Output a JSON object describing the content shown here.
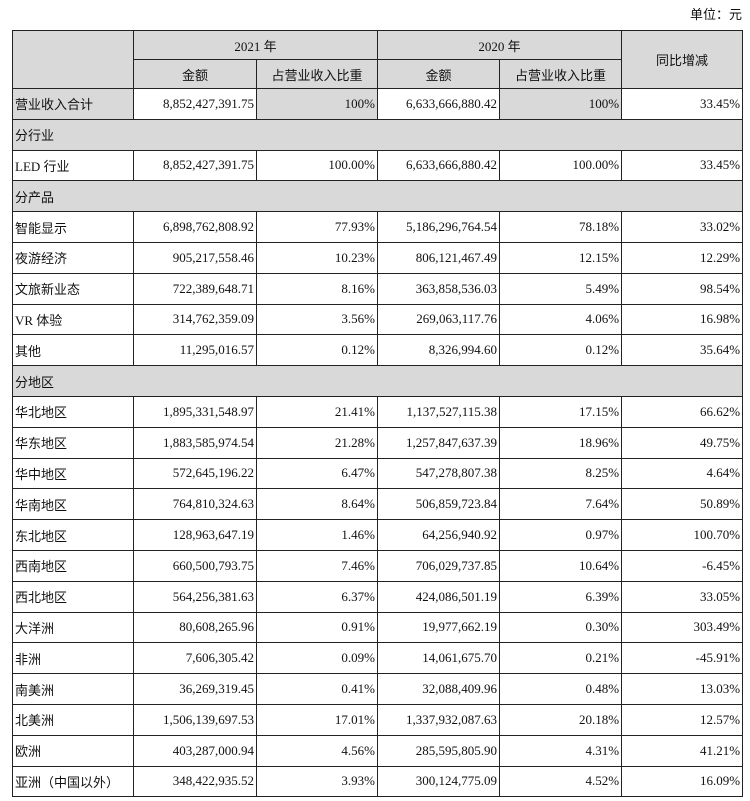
{
  "unit_label": "单位：元",
  "header": {
    "year_2021": "2021 年",
    "year_2020": "2020 年",
    "yoy": "同比增减",
    "amount": "金额",
    "share": "占营业收入比重"
  },
  "rows": [
    {
      "type": "total",
      "label": "营业收入合计",
      "a2021": "8,852,427,391.75",
      "s2021": "100%",
      "a2020": "6,633,666,880.42",
      "s2020": "100%",
      "yoy": "33.45%"
    },
    {
      "type": "section",
      "label": "分行业"
    },
    {
      "type": "data",
      "label": "LED 行业",
      "a2021": "8,852,427,391.75",
      "s2021": "100.00%",
      "a2020": "6,633,666,880.42",
      "s2020": "100.00%",
      "yoy": "33.45%"
    },
    {
      "type": "section",
      "label": "分产品"
    },
    {
      "type": "data",
      "label": "智能显示",
      "a2021": "6,898,762,808.92",
      "s2021": "77.93%",
      "a2020": "5,186,296,764.54",
      "s2020": "78.18%",
      "yoy": "33.02%"
    },
    {
      "type": "data",
      "label": "夜游经济",
      "a2021": "905,217,558.46",
      "s2021": "10.23%",
      "a2020": "806,121,467.49",
      "s2020": "12.15%",
      "yoy": "12.29%"
    },
    {
      "type": "data",
      "label": "文旅新业态",
      "a2021": "722,389,648.71",
      "s2021": "8.16%",
      "a2020": "363,858,536.03",
      "s2020": "5.49%",
      "yoy": "98.54%"
    },
    {
      "type": "data",
      "label": "VR 体验",
      "a2021": "314,762,359.09",
      "s2021": "3.56%",
      "a2020": "269,063,117.76",
      "s2020": "4.06%",
      "yoy": "16.98%"
    },
    {
      "type": "data",
      "label": "其他",
      "a2021": "11,295,016.57",
      "s2021": "0.12%",
      "a2020": "8,326,994.60",
      "s2020": "0.12%",
      "yoy": "35.64%"
    },
    {
      "type": "section",
      "label": "分地区"
    },
    {
      "type": "data",
      "label": "华北地区",
      "a2021": "1,895,331,548.97",
      "s2021": "21.41%",
      "a2020": "1,137,527,115.38",
      "s2020": "17.15%",
      "yoy": "66.62%"
    },
    {
      "type": "data",
      "label": "华东地区",
      "a2021": "1,883,585,974.54",
      "s2021": "21.28%",
      "a2020": "1,257,847,637.39",
      "s2020": "18.96%",
      "yoy": "49.75%"
    },
    {
      "type": "data",
      "label": "华中地区",
      "a2021": "572,645,196.22",
      "s2021": "6.47%",
      "a2020": "547,278,807.38",
      "s2020": "8.25%",
      "yoy": "4.64%"
    },
    {
      "type": "data",
      "label": "华南地区",
      "a2021": "764,810,324.63",
      "s2021": "8.64%",
      "a2020": "506,859,723.84",
      "s2020": "7.64%",
      "yoy": "50.89%"
    },
    {
      "type": "data",
      "label": "东北地区",
      "a2021": "128,963,647.19",
      "s2021": "1.46%",
      "a2020": "64,256,940.92",
      "s2020": "0.97%",
      "yoy": "100.70%"
    },
    {
      "type": "data",
      "label": "西南地区",
      "a2021": "660,500,793.75",
      "s2021": "7.46%",
      "a2020": "706,029,737.85",
      "s2020": "10.64%",
      "yoy": "-6.45%"
    },
    {
      "type": "data",
      "label": "西北地区",
      "a2021": "564,256,381.63",
      "s2021": "6.37%",
      "a2020": "424,086,501.19",
      "s2020": "6.39%",
      "yoy": "33.05%"
    },
    {
      "type": "data",
      "label": "大洋洲",
      "a2021": "80,608,265.96",
      "s2021": "0.91%",
      "a2020": "19,977,662.19",
      "s2020": "0.30%",
      "yoy": "303.49%"
    },
    {
      "type": "data",
      "label": "非洲",
      "a2021": "7,606,305.42",
      "s2021": "0.09%",
      "a2020": "14,061,675.70",
      "s2020": "0.21%",
      "yoy": "-45.91%"
    },
    {
      "type": "data",
      "label": "南美洲",
      "a2021": "36,269,319.45",
      "s2021": "0.41%",
      "a2020": "32,088,409.96",
      "s2020": "0.48%",
      "yoy": "13.03%"
    },
    {
      "type": "data",
      "label": "北美洲",
      "a2021": "1,506,139,697.53",
      "s2021": "17.01%",
      "a2020": "1,337,932,087.63",
      "s2020": "20.18%",
      "yoy": "12.57%"
    },
    {
      "type": "data",
      "label": "欧洲",
      "a2021": "403,287,000.94",
      "s2021": "4.56%",
      "a2020": "285,595,805.90",
      "s2020": "4.31%",
      "yoy": "41.21%"
    },
    {
      "type": "data",
      "label": "亚洲（中国以外）",
      "a2021": "348,422,935.52",
      "s2021": "3.93%",
      "a2020": "300,124,775.09",
      "s2020": "4.52%",
      "yoy": "16.09%"
    }
  ]
}
